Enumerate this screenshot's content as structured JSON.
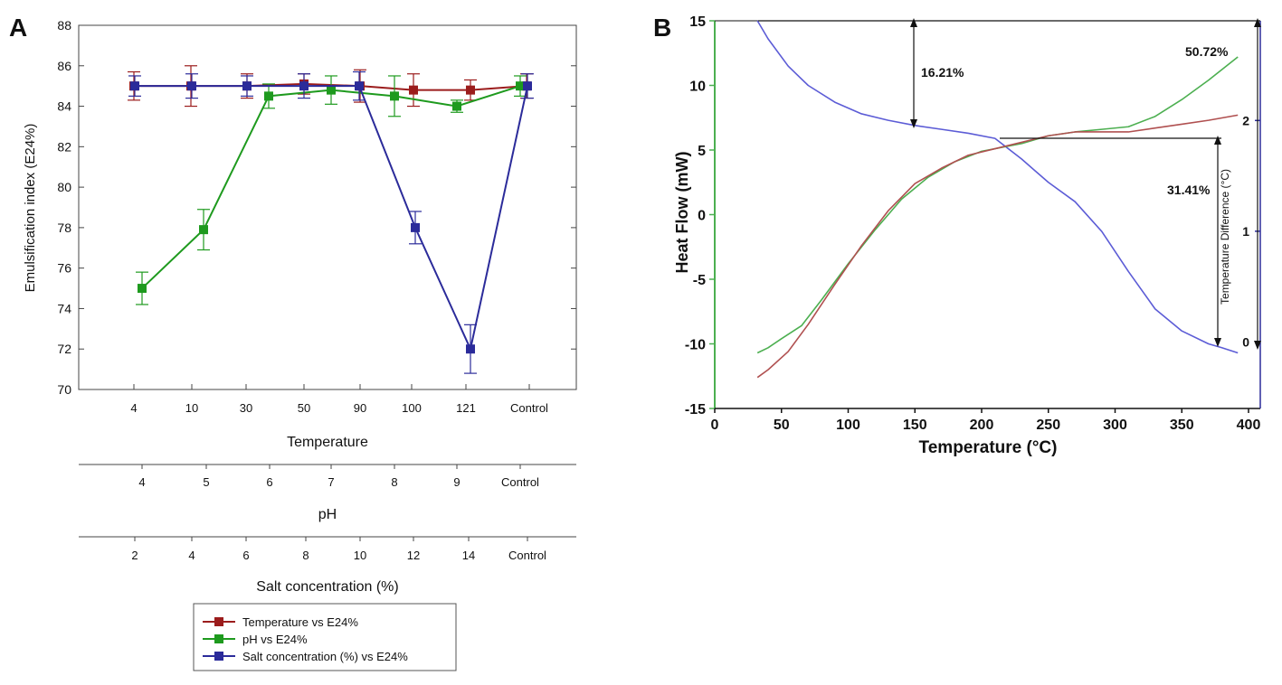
{
  "colors": {
    "temperature": "#9b1c1c",
    "ph": "#1e9a1e",
    "salt": "#2b2b9a",
    "b_green": "#4caf50",
    "b_red": "#b05050",
    "b_blue": "#5c5cd6"
  },
  "chart_data": [
    {
      "panel": "A",
      "type": "line",
      "title": "",
      "ylabel": "Emulsification index (E24%)",
      "ylim": [
        70,
        88
      ],
      "yticks": [
        "70",
        "72",
        "74",
        "76",
        "78",
        "80",
        "82",
        "84",
        "86",
        "88"
      ],
      "x_axes": [
        {
          "label": "Temperature",
          "ticks": [
            "4",
            "10",
            "30",
            "50",
            "90",
            "100",
            "121",
            "Control"
          ]
        },
        {
          "label": "pH",
          "ticks": [
            "4",
            "5",
            "6",
            "7",
            "8",
            "9",
            "Control"
          ]
        },
        {
          "label": "Salt concentration (%)",
          "ticks": [
            "2",
            "4",
            "6",
            "8",
            "10",
            "12",
            "14",
            "Control"
          ]
        }
      ],
      "series": [
        {
          "name": "Temperature vs E24%",
          "color_key": "temperature",
          "x": [
            "4",
            "10",
            "30",
            "50",
            "90",
            "100",
            "121",
            "Control"
          ],
          "values": [
            85.0,
            85.0,
            85.0,
            85.1,
            85.0,
            84.8,
            84.8,
            85.0
          ],
          "errors": [
            0.7,
            1.0,
            0.6,
            0.5,
            0.8,
            0.8,
            0.5,
            0.6
          ]
        },
        {
          "name": "pH vs E24%",
          "color_key": "ph",
          "x": [
            "4",
            "5",
            "6",
            "7",
            "8",
            "9",
            "Control"
          ],
          "values": [
            75.0,
            77.9,
            84.5,
            84.8,
            84.5,
            84.0,
            85.0
          ],
          "errors": [
            0.8,
            1.0,
            0.6,
            0.7,
            1.0,
            0.3,
            0.5
          ]
        },
        {
          "name": "Salt concentration (%) vs E24%",
          "color_key": "salt",
          "x": [
            "2",
            "4",
            "6",
            "8",
            "10",
            "12",
            "14",
            "Control"
          ],
          "values": [
            85.0,
            85.0,
            85.0,
            85.0,
            85.0,
            78.0,
            72.0,
            85.0
          ],
          "errors": [
            0.5,
            0.6,
            0.5,
            0.6,
            0.7,
            0.8,
            1.2,
            0.6
          ]
        }
      ],
      "legend": {
        "position": "bottom",
        "entries": [
          "Temperature vs E24%",
          "pH vs E24%",
          "Salt concentration (%) vs E24%"
        ]
      }
    },
    {
      "panel": "B",
      "type": "line",
      "title": "",
      "xlabel": "Temperature (°C)",
      "ylabel": "Heat Flow (mW)",
      "y2label": "Temperature Difference (°C)",
      "xlim": [
        0,
        400
      ],
      "ylim": [
        -15,
        15
      ],
      "y2lim": [
        -0.6,
        2.9
      ],
      "xticks": [
        "0",
        "50",
        "100",
        "150",
        "200",
        "250",
        "300",
        "350",
        "400"
      ],
      "yticks": [
        "-15",
        "-10",
        "-5",
        "0",
        "5",
        "10",
        "15"
      ],
      "y2ticks": [
        "0",
        "1",
        "2"
      ],
      "series": [
        {
          "name": "blue curve (heat flow)",
          "color_key": "b_blue",
          "x": [
            32,
            40,
            55,
            70,
            90,
            110,
            130,
            150,
            170,
            190,
            210,
            230,
            250,
            270,
            290,
            310,
            330,
            350,
            370,
            380,
            392
          ],
          "y": [
            15,
            13.6,
            11.5,
            10.0,
            8.7,
            7.8,
            7.3,
            6.9,
            6.6,
            6.3,
            5.9,
            4.3,
            2.5,
            1.0,
            -1.3,
            -4.4,
            -7.3,
            -9.0,
            -10.0,
            -10.3,
            -10.7
          ]
        },
        {
          "name": "green curve",
          "color_key": "b_green",
          "x": [
            32,
            40,
            50,
            65,
            80,
            100,
            120,
            140,
            160,
            180,
            200,
            215,
            230,
            250,
            270,
            290,
            310,
            330,
            350,
            370,
            392
          ],
          "y": [
            -10.7,
            -10.3,
            -9.6,
            -8.6,
            -6.6,
            -3.8,
            -1.2,
            1.2,
            2.9,
            4.1,
            4.9,
            5.2,
            5.5,
            6.1,
            6.4,
            6.6,
            6.8,
            7.6,
            8.9,
            10.4,
            12.2
          ]
        },
        {
          "name": "red curve",
          "color_key": "b_red",
          "x": [
            32,
            40,
            55,
            70,
            90,
            110,
            130,
            150,
            170,
            190,
            210,
            230,
            250,
            270,
            290,
            310,
            330,
            350,
            370,
            392
          ],
          "y": [
            -12.6,
            -12.0,
            -10.6,
            -8.5,
            -5.4,
            -2.4,
            0.3,
            2.4,
            3.6,
            4.6,
            5.1,
            5.6,
            6.1,
            6.4,
            6.4,
            6.4,
            6.7,
            7.0,
            7.3,
            7.7
          ]
        }
      ],
      "annotations": [
        "16.21%",
        "31.41%",
        "50.72%"
      ]
    }
  ]
}
